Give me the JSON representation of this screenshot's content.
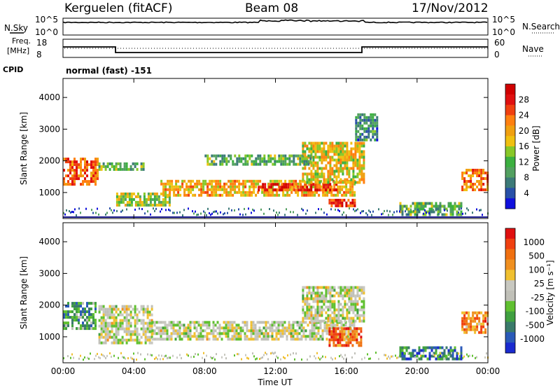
{
  "header": {
    "radar": "Kerguelen (fitACF)",
    "beam": "Beam 08",
    "date": "17/Nov/2012"
  },
  "panels": {
    "nsky_label": "N.Sky",
    "nsearch_label": "N.Search",
    "nsky_ticks": [
      "10^5",
      "10^0"
    ],
    "nsearch_ticks": [
      "10^5",
      "10^0"
    ],
    "freq_label": [
      "Freq.",
      "[MHz]"
    ],
    "freq_ticks": [
      "18",
      "8"
    ],
    "nave_label": "Nave",
    "nave_ticks": [
      "60",
      "0"
    ],
    "cpid_label": "CPID",
    "cpid_text": "normal (fast) -151"
  },
  "colors": {
    "power_scale": [
      "#1010dd",
      "#2850a8",
      "#3c7a78",
      "#52a060",
      "#3cb040",
      "#88c828",
      "#f0c010",
      "#f0a010",
      "#ff8010",
      "#f04010",
      "#e01010",
      "#d00000"
    ],
    "velocity_scale": [
      "#1a2ad0",
      "#2a5ab8",
      "#3a7a6a",
      "#40a040",
      "#60c030",
      "#c0c0b8",
      "#c8c8c0",
      "#f0c030",
      "#f09020",
      "#f07010",
      "#f04010",
      "#e01010"
    ]
  },
  "chart_data": [
    {
      "type": "heatmap",
      "name": "power",
      "ylabel": "Slant Range [km]",
      "xlabel": "Time UT",
      "x_ticks": [
        "00:00",
        "04:00",
        "08:00",
        "12:00",
        "16:00",
        "20:00",
        "00:00"
      ],
      "xlim": [
        0,
        24
      ],
      "ylim": [
        180,
        4600
      ],
      "y_ticks": [
        1000,
        2000,
        3000,
        4000
      ],
      "colorbar": {
        "label": "Power [dB]",
        "range": [
          0,
          32
        ],
        "ticks": [
          "4",
          "8",
          "12",
          "16",
          "20",
          "24",
          "28"
        ]
      },
      "regions": [
        {
          "t": [
            0.0,
            2.0
          ],
          "r": [
            1300,
            2100
          ],
          "level": 0.75
        },
        {
          "t": [
            2.0,
            4.5
          ],
          "r": [
            1700,
            1950
          ],
          "level": 0.35
        },
        {
          "t": [
            3.0,
            6.0
          ],
          "r": [
            600,
            1000
          ],
          "level": 0.45
        },
        {
          "t": [
            5.5,
            16.5
          ],
          "r": [
            900,
            1400
          ],
          "level": 0.6
        },
        {
          "t": [
            11.0,
            15.5
          ],
          "r": [
            1050,
            1300
          ],
          "level": 0.85
        },
        {
          "t": [
            13.5,
            17.0
          ],
          "r": [
            1300,
            2600
          ],
          "level": 0.55
        },
        {
          "t": [
            15.0,
            16.5
          ],
          "r": [
            550,
            800
          ],
          "level": 0.85
        },
        {
          "t": [
            8.0,
            14.0
          ],
          "r": [
            1900,
            2200
          ],
          "level": 0.35
        },
        {
          "t": [
            19.0,
            22.5
          ],
          "r": [
            300,
            700
          ],
          "level": 0.35
        },
        {
          "t": [
            22.5,
            24.0
          ],
          "r": [
            1100,
            1750
          ],
          "level": 0.7
        },
        {
          "t": [
            16.5,
            17.8
          ],
          "r": [
            2700,
            3500
          ],
          "level": 0.25
        }
      ]
    },
    {
      "type": "heatmap",
      "name": "velocity",
      "ylabel": "Slant Range [km]",
      "xlabel": "Time UT",
      "x_ticks": [
        "00:00",
        "04:00",
        "08:00",
        "12:00",
        "16:00",
        "20:00",
        "00:00"
      ],
      "xlim": [
        0,
        24
      ],
      "ylim": [
        180,
        4600
      ],
      "y_ticks": [
        1000,
        2000,
        3000,
        4000
      ],
      "colorbar": {
        "label": "Velocity [m s⁻¹]",
        "ticks": [
          "1000",
          "500",
          "100",
          "25",
          "-25",
          "-100",
          "-500",
          "-1000"
        ]
      },
      "regions": [
        {
          "t": [
            0.0,
            1.8
          ],
          "r": [
            1300,
            2100
          ],
          "level": 0.3
        },
        {
          "t": [
            2.0,
            5.0
          ],
          "r": [
            800,
            2000
          ],
          "level": 0.5
        },
        {
          "t": [
            5.0,
            16.5
          ],
          "r": [
            900,
            1500
          ],
          "level": 0.5
        },
        {
          "t": [
            13.5,
            17.0
          ],
          "r": [
            1500,
            2600
          ],
          "level": 0.5
        },
        {
          "t": [
            15.0,
            16.8
          ],
          "r": [
            700,
            1300
          ],
          "level": 0.8
        },
        {
          "t": [
            19.0,
            22.5
          ],
          "r": [
            300,
            700
          ],
          "level": 0.2
        },
        {
          "t": [
            22.5,
            24.0
          ],
          "r": [
            1100,
            1800
          ],
          "level": 0.75
        }
      ]
    }
  ]
}
